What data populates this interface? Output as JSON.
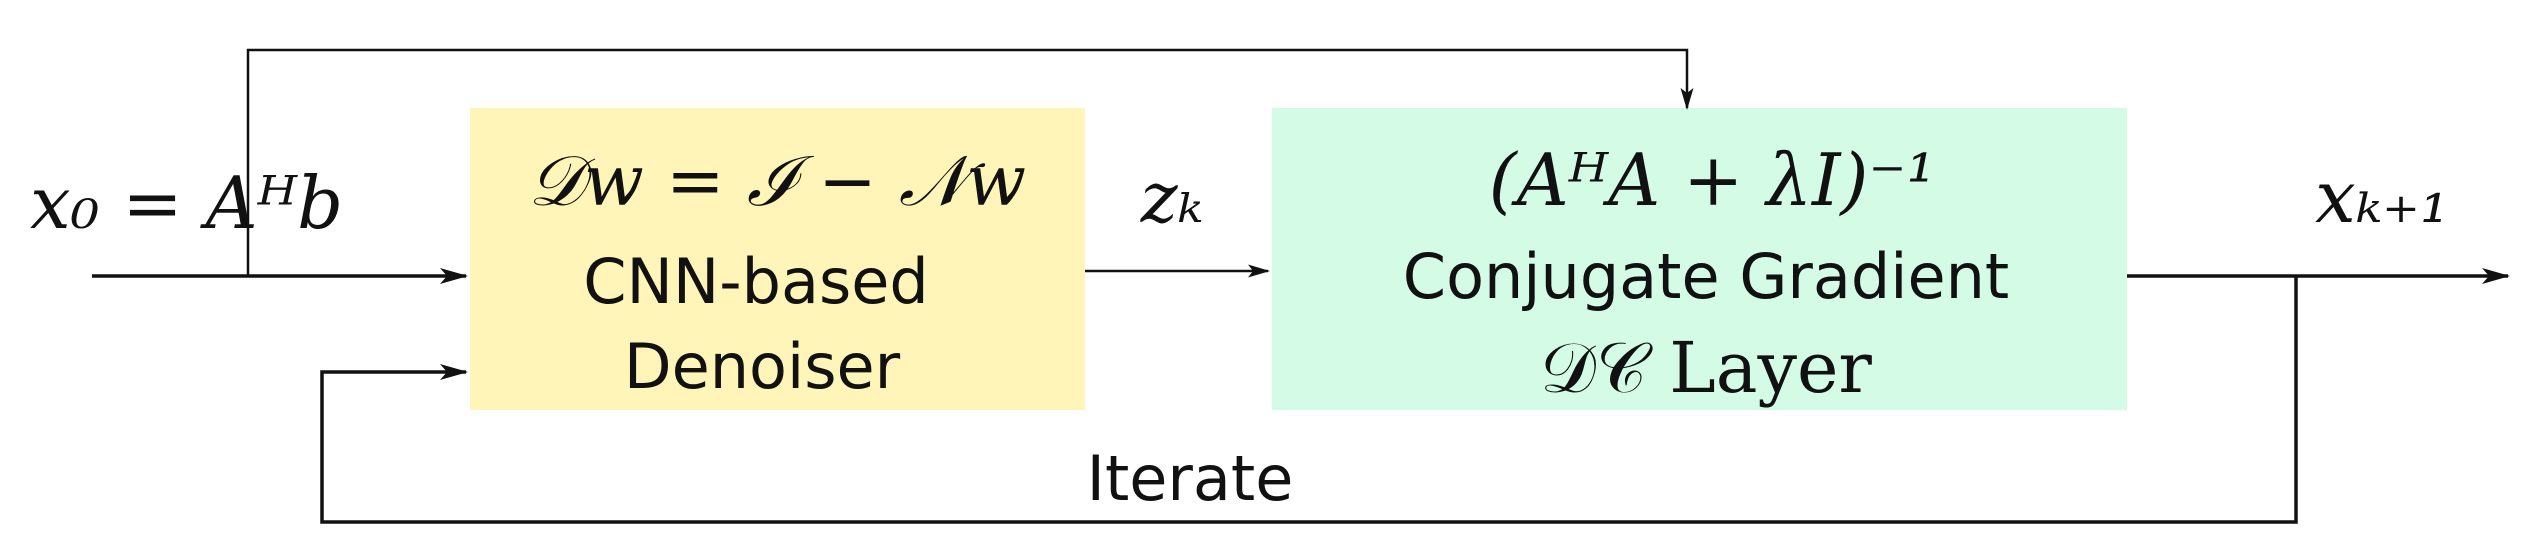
{
  "diagram": {
    "input_label": "x₀ = Aᴴb",
    "denoiser": {
      "formula": "𝒟w = ℐ − 𝒩w",
      "line1": "CNN-based",
      "line2": "Denoiser",
      "fill": "#FFF5B8"
    },
    "intermediate_label": "zₖ",
    "dc_layer": {
      "formula": "(AᴴA + λI)⁻¹",
      "line1": "Conjugate Gradient",
      "line2": "𝒟𝒞 Layer",
      "fill": "#D4FBE6"
    },
    "output_label": "xₖ₊₁",
    "loop_label": "Iterate"
  }
}
